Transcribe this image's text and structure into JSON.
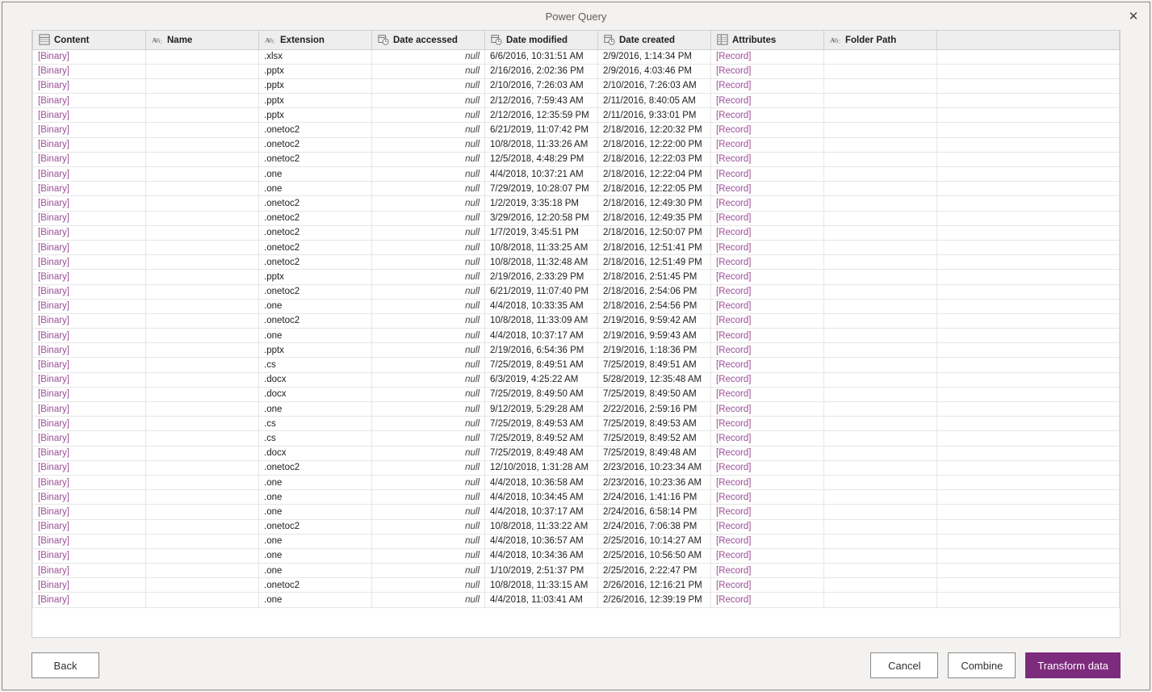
{
  "dialog": {
    "title": "Power Query",
    "close_glyph": "✕"
  },
  "buttons": {
    "back": "Back",
    "cancel": "Cancel",
    "combine": "Combine",
    "transform": "Transform data"
  },
  "null_label": "null",
  "colors": {
    "link_purple": "#9b4f96",
    "primary_btn": "#7d2b7c",
    "header_bg": "#eeeeee",
    "border": "#d0d0d0",
    "row_border": "#e6e6e6",
    "dialog_bg": "#f3f2f1"
  },
  "columns": [
    {
      "key": "content",
      "label": "Content",
      "type": "binary"
    },
    {
      "key": "name",
      "label": "Name",
      "type": "text"
    },
    {
      "key": "extension",
      "label": "Extension",
      "type": "text"
    },
    {
      "key": "date_accessed",
      "label": "Date accessed",
      "type": "datetime"
    },
    {
      "key": "date_modified",
      "label": "Date modified",
      "type": "datetime"
    },
    {
      "key": "date_created",
      "label": "Date created",
      "type": "datetime"
    },
    {
      "key": "attributes",
      "label": "Attributes",
      "type": "record"
    },
    {
      "key": "folder_path",
      "label": "Folder Path",
      "type": "text"
    }
  ],
  "rows": [
    {
      "content": "[Binary]",
      "name": "",
      "extension": ".xlsx",
      "date_accessed": null,
      "date_modified": "6/6/2016, 10:31:51 AM",
      "date_created": "2/9/2016, 1:14:34 PM",
      "attributes": "[Record]",
      "folder_path": ""
    },
    {
      "content": "[Binary]",
      "name": "",
      "extension": ".pptx",
      "date_accessed": null,
      "date_modified": "2/16/2016, 2:02:36 PM",
      "date_created": "2/9/2016, 4:03:46 PM",
      "attributes": "[Record]",
      "folder_path": ""
    },
    {
      "content": "[Binary]",
      "name": "",
      "extension": ".pptx",
      "date_accessed": null,
      "date_modified": "2/10/2016, 7:26:03 AM",
      "date_created": "2/10/2016, 7:26:03 AM",
      "attributes": "[Record]",
      "folder_path": ""
    },
    {
      "content": "[Binary]",
      "name": "",
      "extension": ".pptx",
      "date_accessed": null,
      "date_modified": "2/12/2016, 7:59:43 AM",
      "date_created": "2/11/2016, 8:40:05 AM",
      "attributes": "[Record]",
      "folder_path": ""
    },
    {
      "content": "[Binary]",
      "name": "",
      "extension": ".pptx",
      "date_accessed": null,
      "date_modified": "2/12/2016, 12:35:59 PM",
      "date_created": "2/11/2016, 9:33:01 PM",
      "attributes": "[Record]",
      "folder_path": ""
    },
    {
      "content": "[Binary]",
      "name": "",
      "extension": ".onetoc2",
      "date_accessed": null,
      "date_modified": "6/21/2019, 11:07:42 PM",
      "date_created": "2/18/2016, 12:20:32 PM",
      "attributes": "[Record]",
      "folder_path": ""
    },
    {
      "content": "[Binary]",
      "name": "",
      "extension": ".onetoc2",
      "date_accessed": null,
      "date_modified": "10/8/2018, 11:33:26 AM",
      "date_created": "2/18/2016, 12:22:00 PM",
      "attributes": "[Record]",
      "folder_path": ""
    },
    {
      "content": "[Binary]",
      "name": "",
      "extension": ".onetoc2",
      "date_accessed": null,
      "date_modified": "12/5/2018, 4:48:29 PM",
      "date_created": "2/18/2016, 12:22:03 PM",
      "attributes": "[Record]",
      "folder_path": ""
    },
    {
      "content": "[Binary]",
      "name": "",
      "extension": ".one",
      "date_accessed": null,
      "date_modified": "4/4/2018, 10:37:21 AM",
      "date_created": "2/18/2016, 12:22:04 PM",
      "attributes": "[Record]",
      "folder_path": ""
    },
    {
      "content": "[Binary]",
      "name": "",
      "extension": ".one",
      "date_accessed": null,
      "date_modified": "7/29/2019, 10:28:07 PM",
      "date_created": "2/18/2016, 12:22:05 PM",
      "attributes": "[Record]",
      "folder_path": ""
    },
    {
      "content": "[Binary]",
      "name": "",
      "extension": ".onetoc2",
      "date_accessed": null,
      "date_modified": "1/2/2019, 3:35:18 PM",
      "date_created": "2/18/2016, 12:49:30 PM",
      "attributes": "[Record]",
      "folder_path": ""
    },
    {
      "content": "[Binary]",
      "name": "",
      "extension": ".onetoc2",
      "date_accessed": null,
      "date_modified": "3/29/2016, 12:20:58 PM",
      "date_created": "2/18/2016, 12:49:35 PM",
      "attributes": "[Record]",
      "folder_path": ""
    },
    {
      "content": "[Binary]",
      "name": "",
      "extension": ".onetoc2",
      "date_accessed": null,
      "date_modified": "1/7/2019, 3:45:51 PM",
      "date_created": "2/18/2016, 12:50:07 PM",
      "attributes": "[Record]",
      "folder_path": ""
    },
    {
      "content": "[Binary]",
      "name": "",
      "extension": ".onetoc2",
      "date_accessed": null,
      "date_modified": "10/8/2018, 11:33:25 AM",
      "date_created": "2/18/2016, 12:51:41 PM",
      "attributes": "[Record]",
      "folder_path": ""
    },
    {
      "content": "[Binary]",
      "name": "",
      "extension": ".onetoc2",
      "date_accessed": null,
      "date_modified": "10/8/2018, 11:32:48 AM",
      "date_created": "2/18/2016, 12:51:49 PM",
      "attributes": "[Record]",
      "folder_path": ""
    },
    {
      "content": "[Binary]",
      "name": "",
      "extension": ".pptx",
      "date_accessed": null,
      "date_modified": "2/19/2016, 2:33:29 PM",
      "date_created": "2/18/2016, 2:51:45 PM",
      "attributes": "[Record]",
      "folder_path": ""
    },
    {
      "content": "[Binary]",
      "name": "",
      "extension": ".onetoc2",
      "date_accessed": null,
      "date_modified": "6/21/2019, 11:07:40 PM",
      "date_created": "2/18/2016, 2:54:06 PM",
      "attributes": "[Record]",
      "folder_path": ""
    },
    {
      "content": "[Binary]",
      "name": "",
      "extension": ".one",
      "date_accessed": null,
      "date_modified": "4/4/2018, 10:33:35 AM",
      "date_created": "2/18/2016, 2:54:56 PM",
      "attributes": "[Record]",
      "folder_path": ""
    },
    {
      "content": "[Binary]",
      "name": "",
      "extension": ".onetoc2",
      "date_accessed": null,
      "date_modified": "10/8/2018, 11:33:09 AM",
      "date_created": "2/19/2016, 9:59:42 AM",
      "attributes": "[Record]",
      "folder_path": ""
    },
    {
      "content": "[Binary]",
      "name": "",
      "extension": ".one",
      "date_accessed": null,
      "date_modified": "4/4/2018, 10:37:17 AM",
      "date_created": "2/19/2016, 9:59:43 AM",
      "attributes": "[Record]",
      "folder_path": ""
    },
    {
      "content": "[Binary]",
      "name": "",
      "extension": ".pptx",
      "date_accessed": null,
      "date_modified": "2/19/2016, 6:54:36 PM",
      "date_created": "2/19/2016, 1:18:36 PM",
      "attributes": "[Record]",
      "folder_path": ""
    },
    {
      "content": "[Binary]",
      "name": "",
      "extension": ".cs",
      "date_accessed": null,
      "date_modified": "7/25/2019, 8:49:51 AM",
      "date_created": "7/25/2019, 8:49:51 AM",
      "attributes": "[Record]",
      "folder_path": ""
    },
    {
      "content": "[Binary]",
      "name": "",
      "extension": ".docx",
      "date_accessed": null,
      "date_modified": "6/3/2019, 4:25:22 AM",
      "date_created": "5/28/2019, 12:35:48 AM",
      "attributes": "[Record]",
      "folder_path": ""
    },
    {
      "content": "[Binary]",
      "name": "",
      "extension": ".docx",
      "date_accessed": null,
      "date_modified": "7/25/2019, 8:49:50 AM",
      "date_created": "7/25/2019, 8:49:50 AM",
      "attributes": "[Record]",
      "folder_path": ""
    },
    {
      "content": "[Binary]",
      "name": "",
      "extension": ".one",
      "date_accessed": null,
      "date_modified": "9/12/2019, 5:29:28 AM",
      "date_created": "2/22/2016, 2:59:16 PM",
      "attributes": "[Record]",
      "folder_path": ""
    },
    {
      "content": "[Binary]",
      "name": "",
      "extension": ".cs",
      "date_accessed": null,
      "date_modified": "7/25/2019, 8:49:53 AM",
      "date_created": "7/25/2019, 8:49:53 AM",
      "attributes": "[Record]",
      "folder_path": ""
    },
    {
      "content": "[Binary]",
      "name": "",
      "extension": ".cs",
      "date_accessed": null,
      "date_modified": "7/25/2019, 8:49:52 AM",
      "date_created": "7/25/2019, 8:49:52 AM",
      "attributes": "[Record]",
      "folder_path": ""
    },
    {
      "content": "[Binary]",
      "name": "",
      "extension": ".docx",
      "date_accessed": null,
      "date_modified": "7/25/2019, 8:49:48 AM",
      "date_created": "7/25/2019, 8:49:48 AM",
      "attributes": "[Record]",
      "folder_path": ""
    },
    {
      "content": "[Binary]",
      "name": "",
      "extension": ".onetoc2",
      "date_accessed": null,
      "date_modified": "12/10/2018, 1:31:28 AM",
      "date_created": "2/23/2016, 10:23:34 AM",
      "attributes": "[Record]",
      "folder_path": ""
    },
    {
      "content": "[Binary]",
      "name": "",
      "extension": ".one",
      "date_accessed": null,
      "date_modified": "4/4/2018, 10:36:58 AM",
      "date_created": "2/23/2016, 10:23:36 AM",
      "attributes": "[Record]",
      "folder_path": ""
    },
    {
      "content": "[Binary]",
      "name": "",
      "extension": ".one",
      "date_accessed": null,
      "date_modified": "4/4/2018, 10:34:45 AM",
      "date_created": "2/24/2016, 1:41:16 PM",
      "attributes": "[Record]",
      "folder_path": ""
    },
    {
      "content": "[Binary]",
      "name": "",
      "extension": ".one",
      "date_accessed": null,
      "date_modified": "4/4/2018, 10:37:17 AM",
      "date_created": "2/24/2016, 6:58:14 PM",
      "attributes": "[Record]",
      "folder_path": ""
    },
    {
      "content": "[Binary]",
      "name": "",
      "extension": ".onetoc2",
      "date_accessed": null,
      "date_modified": "10/8/2018, 11:33:22 AM",
      "date_created": "2/24/2016, 7:06:38 PM",
      "attributes": "[Record]",
      "folder_path": ""
    },
    {
      "content": "[Binary]",
      "name": "",
      "extension": ".one",
      "date_accessed": null,
      "date_modified": "4/4/2018, 10:36:57 AM",
      "date_created": "2/25/2016, 10:14:27 AM",
      "attributes": "[Record]",
      "folder_path": ""
    },
    {
      "content": "[Binary]",
      "name": "",
      "extension": ".one",
      "date_accessed": null,
      "date_modified": "4/4/2018, 10:34:36 AM",
      "date_created": "2/25/2016, 10:56:50 AM",
      "attributes": "[Record]",
      "folder_path": ""
    },
    {
      "content": "[Binary]",
      "name": "",
      "extension": ".one",
      "date_accessed": null,
      "date_modified": "1/10/2019, 2:51:37 PM",
      "date_created": "2/25/2016, 2:22:47 PM",
      "attributes": "[Record]",
      "folder_path": ""
    },
    {
      "content": "[Binary]",
      "name": "",
      "extension": ".onetoc2",
      "date_accessed": null,
      "date_modified": "10/8/2018, 11:33:15 AM",
      "date_created": "2/26/2016, 12:16:21 PM",
      "attributes": "[Record]",
      "folder_path": ""
    },
    {
      "content": "[Binary]",
      "name": "",
      "extension": ".one",
      "date_accessed": null,
      "date_modified": "4/4/2018, 11:03:41 AM",
      "date_created": "2/26/2016, 12:39:19 PM",
      "attributes": "[Record]",
      "folder_path": ""
    }
  ]
}
